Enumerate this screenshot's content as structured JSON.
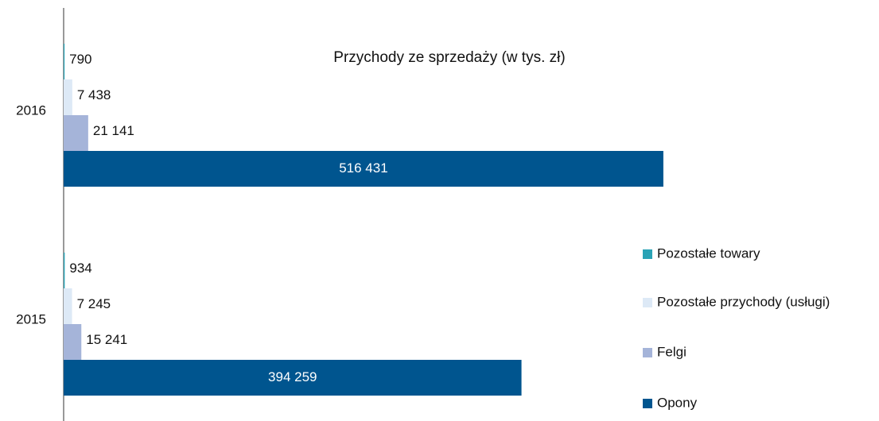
{
  "chart_data": {
    "type": "barh",
    "title": "Przychody ze sprzedaży (w tys. zł)",
    "categories": [
      "2016",
      "2015"
    ],
    "series": [
      {
        "name": "Pozostałe towary",
        "color": "#2aa3b6",
        "values": [
          790,
          934
        ],
        "value_labels": [
          "790",
          "934"
        ]
      },
      {
        "name": "Pozostałe przychody (usługi)",
        "color": "#dde9f6",
        "values": [
          7438,
          7245
        ],
        "value_labels": [
          "7 438",
          "7 245"
        ]
      },
      {
        "name": "Felgi",
        "color": "#a5b4d9",
        "values": [
          21141,
          15241
        ],
        "value_labels": [
          "21 141",
          "15 241"
        ]
      },
      {
        "name": "Opony",
        "color": "#00558f",
        "values": [
          516431,
          394259
        ],
        "value_labels": [
          "516 431",
          "394 259"
        ]
      }
    ],
    "xlim": [
      0,
      685000
    ]
  }
}
